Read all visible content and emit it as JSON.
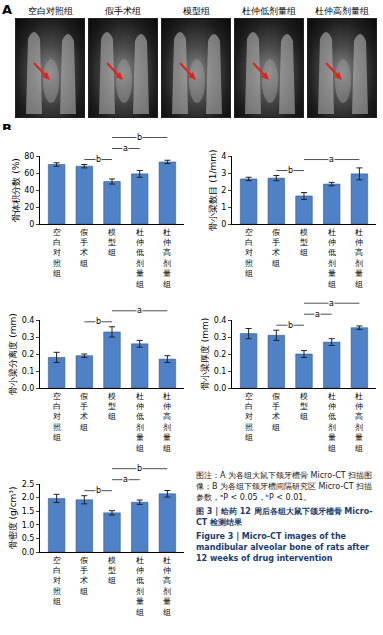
{
  "panel_a": {
    "label": "A",
    "images": [
      "空白对照组",
      "假手术组",
      "模型组",
      "杜仲低剂量组",
      "杜仲高剂量组"
    ]
  },
  "panel_b": {
    "label": "B"
  },
  "chart_data": [
    {
      "type": "bar",
      "y_label": "骨体积分数 (%)",
      "categories": [
        "空白对照组",
        "假手术组",
        "模型组",
        "杜仲低剂量组",
        "杜仲高剂量组"
      ],
      "values": [
        70,
        68,
        50,
        59,
        73
      ],
      "errors": [
        2,
        2,
        3,
        4,
        2
      ],
      "color": "#4f81c7",
      "ylim": [
        0,
        80
      ],
      "yticks": [
        0,
        20,
        40,
        60,
        80
      ],
      "brackets": [
        {
          "from": "假手术组",
          "to": "模型组",
          "label": "b"
        },
        {
          "from": "模型组",
          "to": "杜仲低剂量组",
          "label": "a"
        },
        {
          "from": "模型组",
          "to": "杜仲高剂量组",
          "label": "b"
        }
      ]
    },
    {
      "type": "bar",
      "y_label": "骨小梁数目 (1/mm)",
      "categories": [
        "空白对照组",
        "假手术组",
        "模型组",
        "杜仲低剂量组",
        "杜仲高剂量组"
      ],
      "values": [
        2.65,
        2.7,
        1.65,
        2.35,
        2.95
      ],
      "errors": [
        0.1,
        0.15,
        0.2,
        0.1,
        0.35
      ],
      "color": "#4f81c7",
      "ylim": [
        0,
        4
      ],
      "yticks": [
        0,
        1,
        2,
        3,
        4
      ],
      "brackets": [
        {
          "from": "假手术组",
          "to": "模型组",
          "label": "b"
        },
        {
          "from": "模型组",
          "to": "杜仲高剂量组",
          "label": "a"
        }
      ]
    },
    {
      "type": "bar",
      "y_label": "骨小梁分离度 (mm)",
      "categories": [
        "空白对照组",
        "假手术组",
        "模型组",
        "杜仲低剂量组",
        "杜仲高剂量组"
      ],
      "values": [
        0.18,
        0.19,
        0.33,
        0.26,
        0.17
      ],
      "errors": [
        0.03,
        0.01,
        0.03,
        0.02,
        0.02
      ],
      "color": "#4f81c7",
      "ylim": [
        0,
        0.4
      ],
      "yticks": [
        {
          "value": 0,
          "label": "0.0"
        },
        0.1,
        0.2,
        0.3,
        0.4
      ],
      "brackets": [
        {
          "from": "假手术组",
          "to": "模型组",
          "label": "b"
        },
        {
          "from": "模型组",
          "to": "杜仲高剂量组",
          "label": "a"
        }
      ]
    },
    {
      "type": "bar",
      "y_label": "骨小梁厚度 (mm)",
      "categories": [
        "空白对照组",
        "假手术组",
        "模型组",
        "杜仲低剂量组",
        "杜仲高剂量组"
      ],
      "values": [
        0.32,
        0.31,
        0.2,
        0.27,
        0.355
      ],
      "errors": [
        0.03,
        0.03,
        0.02,
        0.02,
        0.01
      ],
      "color": "#4f81c7",
      "ylim": [
        0,
        0.4
      ],
      "yticks": [
        {
          "value": 0,
          "label": "0.0"
        },
        0.1,
        0.2,
        0.3,
        0.4
      ],
      "brackets": [
        {
          "from": "假手术组",
          "to": "模型组",
          "label": "b"
        },
        {
          "from": "模型组",
          "to": "杜仲低剂量组",
          "label": "a"
        },
        {
          "from": "模型组",
          "to": "杜仲高剂量组",
          "label": "a"
        }
      ]
    },
    {
      "type": "bar",
      "y_label": "骨密度 (g/cm³)",
      "categories": [
        "空白对照组",
        "假手术组",
        "模型组",
        "杜仲低剂量组",
        "杜仲高剂量组"
      ],
      "values": [
        1.97,
        1.92,
        1.44,
        1.83,
        2.14
      ],
      "errors": [
        0.15,
        0.15,
        0.08,
        0.08,
        0.12
      ],
      "color": "#4f81c7",
      "ylim": [
        0,
        2.5
      ],
      "yticks": [
        {
          "value": 0,
          "label": "0.0"
        },
        0.5,
        {
          "value": 1,
          "label": "1.0"
        },
        1.5,
        {
          "value": 2,
          "label": "2.0"
        },
        2.5
      ],
      "brackets": [
        {
          "from": "假手术组",
          "to": "模型组",
          "label": "b"
        },
        {
          "from": "模型组",
          "to": "杜仲低剂量组",
          "label": "a"
        },
        {
          "from": "模型组",
          "to": "杜仲高剂量组",
          "label": "b"
        }
      ]
    }
  ],
  "caption": {
    "note": "图注：A 为各组大鼠下颌牙槽骨 Micro-CT 扫描图像；B 为各组下颌牙槽间隔研究区 Micro-CT 扫描参数，ᵃP < 0.05，ᵇP < 0.01。",
    "title_cn": "图 3 | 给药 12 周后各组大鼠下颌牙槽骨 Micro-CT 检测结果",
    "title_en": "Figure 3 | Micro-CT images of the mandibular alveolar bone of rats after 12 weeks of drug intervention"
  }
}
